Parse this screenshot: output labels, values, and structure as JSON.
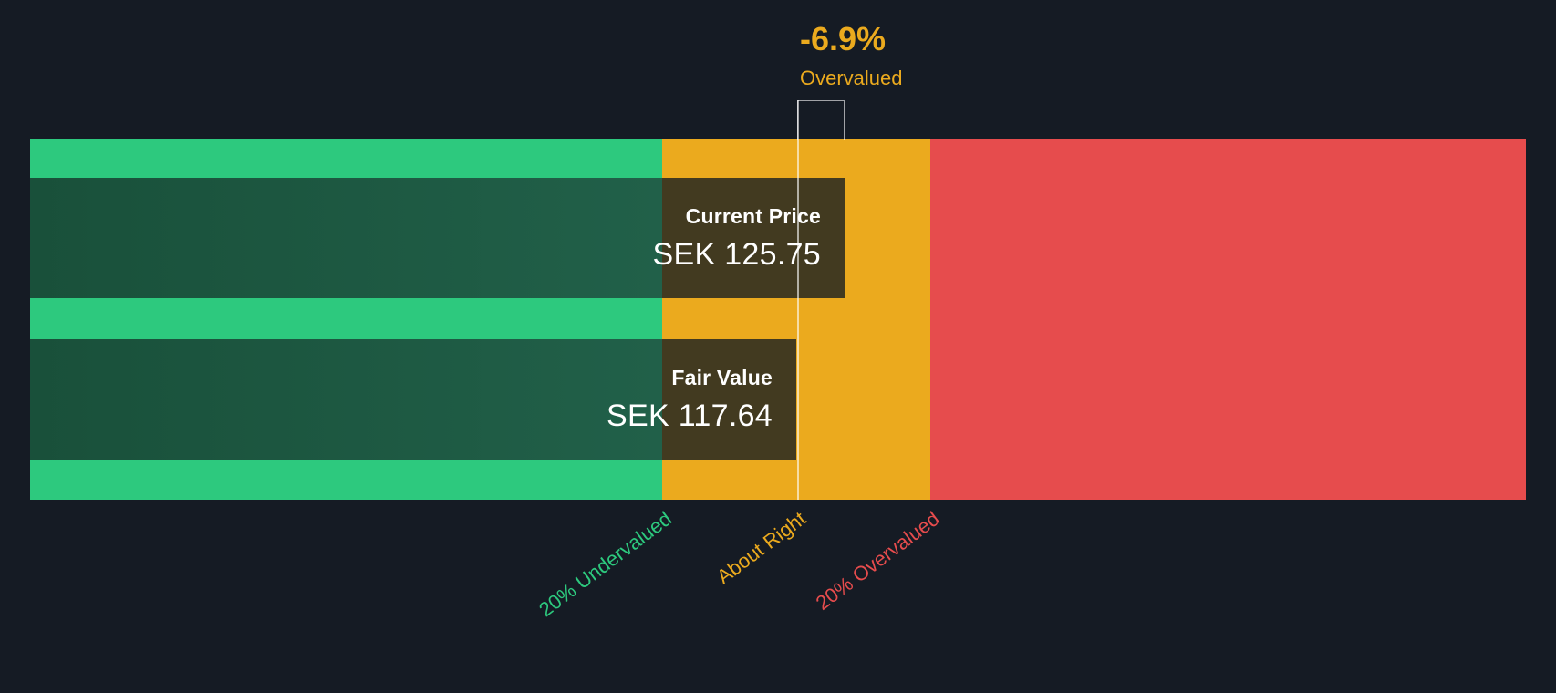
{
  "chart_data": {
    "type": "bar",
    "subtype": "share-price-vs-fair-value-valuation-gauge",
    "current_price": {
      "label": "Current Price",
      "display": "SEK 125.75",
      "value": 125.75,
      "currency": "SEK"
    },
    "fair_value": {
      "label": "Fair Value",
      "display": "SEK 117.64",
      "value": 117.64,
      "currency": "SEK"
    },
    "delta": {
      "percent": "-6.9%",
      "status": "Overvalued"
    },
    "zones": [
      {
        "id": "undervalued",
        "label": "20% Undervalued",
        "color": "#2dc97e"
      },
      {
        "id": "about-right",
        "label": "About Right",
        "color": "#ebaa1e"
      },
      {
        "id": "overvalued",
        "label": "20% Overvalued",
        "color": "#e64c4d"
      }
    ],
    "layout_hints": {
      "legend_position": "bottom-rotated",
      "marker": "current-price-vertical-line",
      "grid": false
    }
  },
  "colors": {
    "background": "#151b24",
    "undervalued_green": "#2dc97e",
    "about_right_amber": "#ebaa1e",
    "overvalued_red": "#e64c4d",
    "overlay_dark_green": "#1e5b41",
    "overlay_dark_amber": "#423a20",
    "marker_line": "rgba(255,255,255,0.6)",
    "text": "#ffffff"
  }
}
